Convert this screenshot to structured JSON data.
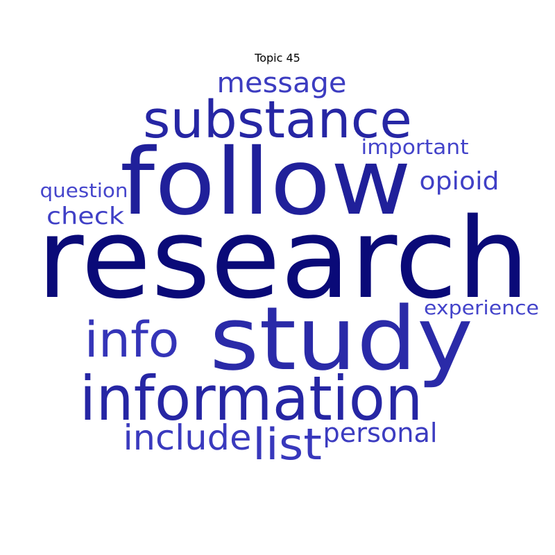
{
  "chart_data": {
    "type": "wordcloud",
    "title": "Topic 45",
    "words": [
      {
        "text": "research",
        "weight": 1.0,
        "color": "#0a0a78"
      },
      {
        "text": "follow",
        "weight": 0.8,
        "color": "#20209a"
      },
      {
        "text": "study",
        "weight": 0.78,
        "color": "#2a2aa8"
      },
      {
        "text": "information",
        "weight": 0.6,
        "color": "#2626a4"
      },
      {
        "text": "substance",
        "weight": 0.55,
        "color": "#2626a4"
      },
      {
        "text": "info",
        "weight": 0.45,
        "color": "#3434b8"
      },
      {
        "text": "list",
        "weight": 0.4,
        "color": "#3838bc"
      },
      {
        "text": "include",
        "weight": 0.33,
        "color": "#3a3abe"
      },
      {
        "text": "personal",
        "weight": 0.28,
        "color": "#3c3cc0"
      },
      {
        "text": "message",
        "weight": 0.28,
        "color": "#3c3cc0"
      },
      {
        "text": "opioid",
        "weight": 0.25,
        "color": "#4040c6"
      },
      {
        "text": "check",
        "weight": 0.25,
        "color": "#4040c6"
      },
      {
        "text": "important",
        "weight": 0.22,
        "color": "#4444ca"
      },
      {
        "text": "experience",
        "weight": 0.22,
        "color": "#4444ca"
      },
      {
        "text": "question",
        "weight": 0.2,
        "color": "#4646cc"
      }
    ]
  }
}
